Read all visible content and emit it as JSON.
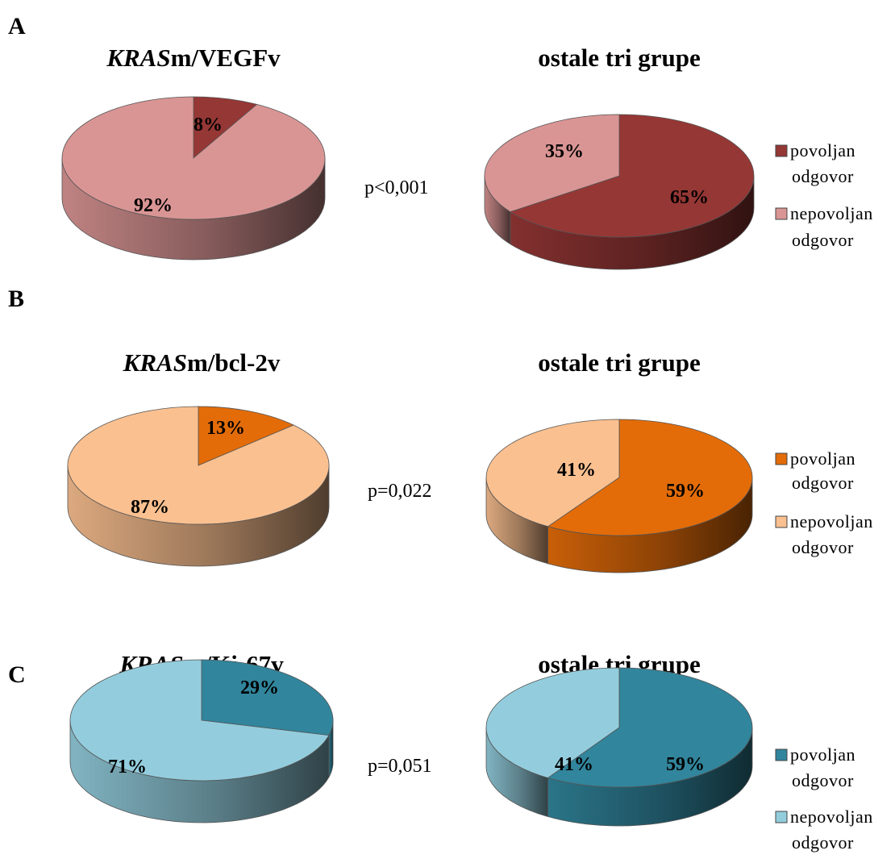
{
  "panels": [
    {
      "letter": "A",
      "p_value": "p<0,001",
      "legend": [
        "povoljan",
        "odgovor",
        "nepovoljan",
        "odgovor"
      ]
    },
    {
      "letter": "B",
      "p_value": "p=0,022",
      "legend": [
        "povoljan",
        "odgovor",
        "nepovoljan",
        "odgovor"
      ]
    },
    {
      "letter": "C",
      "p_value": "p=0,051",
      "legend": [
        "povoljan",
        "odgovor",
        "nepovoljan",
        "odgovor"
      ]
    }
  ],
  "chart_data": [
    {
      "type": "pie",
      "panel": "A",
      "title_italic": "KRAS",
      "title_rest": "m/VEGFv",
      "labels": [
        "povoljan odgovor",
        "nepovoljan odgovor"
      ],
      "values": [
        8,
        92
      ],
      "value_labels": [
        "8%",
        "92%"
      ],
      "colors": [
        "#953735",
        "#d99594"
      ]
    },
    {
      "type": "pie",
      "panel": "A",
      "title_italic": "",
      "title_rest": "ostale tri grupe",
      "labels": [
        "povoljan odgovor",
        "nepovoljan odgovor"
      ],
      "values": [
        65,
        35
      ],
      "value_labels": [
        "65%",
        "35%"
      ],
      "colors": [
        "#953735",
        "#d99594"
      ]
    },
    {
      "type": "pie",
      "panel": "B",
      "title_italic": "KRAS",
      "title_rest": "m/bcl-2v",
      "labels": [
        "povoljan odgovor",
        "nepovoljan odgovor"
      ],
      "values": [
        13,
        87
      ],
      "value_labels": [
        "13%",
        "87%"
      ],
      "colors": [
        "#e36c09",
        "#fac090"
      ]
    },
    {
      "type": "pie",
      "panel": "B",
      "title_italic": "",
      "title_rest": "ostale tri grupe",
      "labels": [
        "povoljan odgovor",
        "nepovoljan odgovor"
      ],
      "values": [
        59,
        41
      ],
      "value_labels": [
        "59%",
        "41%"
      ],
      "colors": [
        "#e36c09",
        "#fac090"
      ]
    },
    {
      "type": "pie",
      "panel": "C",
      "title_italic": "KRAS",
      "title_rest": "m/Ki-67v",
      "labels": [
        "povoljan odgovor",
        "nepovoljan odgovor"
      ],
      "values": [
        29,
        71
      ],
      "value_labels": [
        "29%",
        "71%"
      ],
      "colors": [
        "#31859c",
        "#93cddd"
      ]
    },
    {
      "type": "pie",
      "panel": "C",
      "title_italic": "",
      "title_rest": "ostale tri grupe",
      "labels": [
        "povoljan odgovor",
        "nepovoljan odgovor"
      ],
      "values": [
        59,
        41
      ],
      "value_labels": [
        "59%",
        "41%"
      ],
      "colors": [
        "#31859c",
        "#93cddd"
      ]
    }
  ]
}
